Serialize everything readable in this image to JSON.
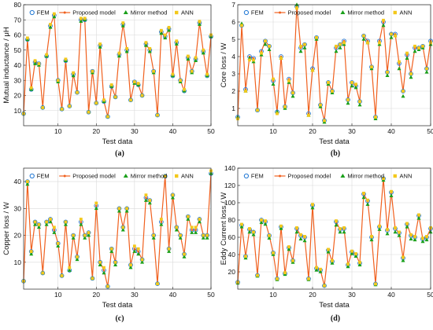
{
  "legend": [
    "FEM",
    "Proposed model",
    "Mirror method",
    "ANN"
  ],
  "colors": {
    "fem": "#1f77d4",
    "proposed": "#f0601e",
    "mirror": "#1aa01a",
    "ann": "#f3c81b"
  },
  "chart_data": [
    {
      "type": "line",
      "caption": "(a)",
      "xlabel": "Test data",
      "ylabel": "Mutual inductance / μH",
      "xlim": [
        1,
        50
      ],
      "ylim": [
        0,
        80
      ],
      "xticks": [
        10,
        20,
        30,
        40,
        50
      ],
      "yticks": [
        10,
        20,
        30,
        40,
        50,
        60,
        70,
        80
      ],
      "grid": true,
      "legend_position": "top",
      "x": [
        1,
        2,
        3,
        4,
        5,
        6,
        7,
        8,
        9,
        10,
        11,
        12,
        13,
        14,
        15,
        16,
        17,
        18,
        19,
        20,
        21,
        22,
        23,
        24,
        25,
        26,
        27,
        28,
        29,
        30,
        31,
        32,
        33,
        34,
        35,
        36,
        37,
        38,
        39,
        40,
        41,
        42,
        43,
        44,
        45,
        46,
        47,
        48,
        49,
        50
      ],
      "series": [
        {
          "name": "FEM",
          "values": [
            8,
            57,
            24,
            42,
            41,
            12,
            46,
            66,
            73,
            30,
            11,
            43,
            13,
            34,
            22,
            70,
            70,
            9,
            36,
            15,
            53,
            16,
            6,
            26,
            19,
            47,
            67,
            50,
            17,
            29,
            27,
            20,
            54,
            50,
            36,
            7,
            62,
            59,
            64,
            33,
            55,
            30,
            23,
            45,
            36,
            44,
            68,
            49,
            33,
            59
          ]
        },
        {
          "name": "Proposed model",
          "values": [
            8,
            57,
            24,
            42,
            41,
            12,
            46,
            66,
            73,
            30,
            11,
            43,
            13,
            34,
            22,
            70,
            70,
            9,
            36,
            15,
            53,
            16,
            6,
            26,
            19,
            47,
            67,
            50,
            17,
            29,
            27,
            20,
            54,
            50,
            36,
            7,
            62,
            59,
            64,
            33,
            55,
            30,
            23,
            45,
            36,
            44,
            68,
            49,
            33,
            59
          ]
        },
        {
          "name": "Mirror method",
          "values": [
            8,
            57,
            24,
            41,
            40,
            12,
            46,
            65,
            72,
            29,
            11,
            43,
            13,
            33,
            22,
            69,
            70,
            9,
            35,
            15,
            52,
            16,
            6,
            26,
            19,
            46,
            66,
            49,
            17,
            28,
            27,
            20,
            53,
            49,
            35,
            7,
            61,
            58,
            63,
            33,
            54,
            29,
            23,
            44,
            35,
            43,
            67,
            48,
            33,
            59
          ]
        },
        {
          "name": "ANN",
          "values": [
            8,
            58,
            25,
            43,
            41,
            12,
            47,
            67,
            74,
            30,
            11,
            44,
            13,
            35,
            22,
            71,
            71,
            9,
            36,
            15,
            54,
            17,
            6,
            27,
            19,
            48,
            68,
            51,
            17,
            29,
            28,
            20,
            55,
            51,
            36,
            7,
            63,
            60,
            65,
            34,
            56,
            30,
            24,
            46,
            36,
            45,
            69,
            50,
            34,
            60
          ]
        }
      ]
    },
    {
      "type": "line",
      "caption": "(b)",
      "xlabel": "Test data",
      "ylabel": "Core loss / W",
      "xlim": [
        1,
        50
      ],
      "ylim": [
        0,
        7
      ],
      "xticks": [
        10,
        20,
        30,
        40,
        50
      ],
      "yticks": [
        1,
        2,
        3,
        4,
        5,
        6,
        7
      ],
      "grid": true,
      "legend_position": "top",
      "x": [
        1,
        2,
        3,
        4,
        5,
        6,
        7,
        8,
        9,
        10,
        11,
        12,
        13,
        14,
        15,
        16,
        17,
        18,
        19,
        20,
        21,
        22,
        23,
        24,
        25,
        26,
        27,
        28,
        29,
        30,
        31,
        32,
        33,
        34,
        35,
        36,
        37,
        38,
        39,
        40,
        41,
        42,
        43,
        44,
        45,
        46,
        47,
        48,
        49,
        50
      ],
      "series": [
        {
          "name": "FEM",
          "values": [
            0.5,
            5.8,
            2.1,
            4.0,
            3.9,
            0.9,
            4.3,
            4.9,
            4.6,
            2.6,
            0.8,
            4.0,
            1.1,
            2.7,
            1.9,
            6.9,
            4.5,
            4.7,
            0.7,
            3.3,
            5.1,
            1.2,
            0.3,
            2.5,
            2.0,
            4.5,
            4.7,
            4.9,
            1.5,
            2.5,
            2.3,
            1.4,
            5.2,
            4.9,
            3.4,
            0.5,
            4.9,
            6.0,
            3.1,
            5.3,
            5.3,
            3.6,
            2.0,
            4.1,
            3.0,
            4.5,
            4.5,
            4.6,
            3.3,
            4.9
          ]
        },
        {
          "name": "Proposed model",
          "values": [
            0.5,
            5.8,
            2.1,
            4.0,
            3.9,
            0.9,
            4.3,
            4.9,
            4.6,
            2.6,
            0.8,
            4.0,
            1.1,
            2.7,
            1.9,
            6.9,
            4.5,
            4.7,
            0.7,
            3.3,
            5.1,
            1.2,
            0.3,
            2.5,
            2.0,
            4.5,
            4.7,
            4.9,
            1.5,
            2.5,
            2.3,
            1.4,
            5.2,
            4.9,
            3.4,
            0.5,
            4.9,
            6.0,
            3.1,
            5.3,
            5.3,
            3.6,
            2.0,
            4.1,
            3.0,
            4.5,
            4.5,
            4.6,
            3.3,
            4.9
          ]
        },
        {
          "name": "Mirror method",
          "values": [
            0.5,
            5.9,
            2.0,
            3.9,
            3.7,
            0.9,
            4.1,
            4.7,
            4.4,
            2.4,
            0.8,
            3.9,
            1.0,
            2.5,
            1.7,
            7.0,
            4.3,
            4.5,
            0.6,
            3.2,
            5.0,
            1.1,
            0.2,
            2.4,
            1.9,
            4.3,
            4.5,
            4.7,
            1.3,
            2.3,
            2.2,
            1.2,
            5.0,
            4.8,
            3.3,
            0.4,
            4.7,
            5.8,
            2.9,
            5.1,
            5.2,
            3.3,
            1.7,
            3.9,
            2.8,
            4.3,
            4.4,
            4.5,
            3.1,
            4.7
          ]
        },
        {
          "name": "ANN",
          "values": [
            0.4,
            5.8,
            2.0,
            3.8,
            3.8,
            0.9,
            4.2,
            4.9,
            4.6,
            2.7,
            0.7,
            3.9,
            1.1,
            2.6,
            1.9,
            6.8,
            4.6,
            4.7,
            0.6,
            3.2,
            5.1,
            1.2,
            0.3,
            2.5,
            2.0,
            4.6,
            4.7,
            4.8,
            1.5,
            2.5,
            2.4,
            1.4,
            5.2,
            4.8,
            3.4,
            0.5,
            4.8,
            6.1,
            3.1,
            5.3,
            5.2,
            3.7,
            2.0,
            4.2,
            3.0,
            4.6,
            4.5,
            4.6,
            3.3,
            4.8
          ]
        }
      ]
    },
    {
      "type": "line",
      "caption": "(c)",
      "xlabel": "Test data",
      "ylabel": "Copper loss / W",
      "xlim": [
        1,
        50
      ],
      "ylim": [
        0,
        45
      ],
      "xticks": [
        10,
        20,
        30,
        40,
        50
      ],
      "yticks": [
        10,
        20,
        30,
        40
      ],
      "grid": true,
      "legend_position": "top",
      "x": [
        1,
        2,
        3,
        4,
        5,
        6,
        7,
        8,
        9,
        10,
        11,
        12,
        13,
        14,
        15,
        16,
        17,
        18,
        19,
        20,
        21,
        22,
        23,
        24,
        25,
        26,
        27,
        28,
        29,
        30,
        31,
        32,
        33,
        34,
        35,
        36,
        37,
        38,
        39,
        40,
        41,
        42,
        43,
        44,
        45,
        46,
        47,
        48,
        49,
        50
      ],
      "series": [
        {
          "name": "FEM",
          "values": [
            3,
            40,
            14,
            25,
            24,
            6,
            25,
            26,
            22,
            17,
            5,
            25,
            7,
            20,
            12,
            25,
            20,
            21,
            4,
            31,
            10,
            7,
            1,
            15,
            10,
            30,
            23,
            30,
            9,
            15,
            14,
            11,
            34,
            33,
            20,
            2,
            25,
            42,
            15,
            35,
            23,
            20,
            13,
            27,
            22,
            22,
            26,
            20,
            20,
            43
          ]
        },
        {
          "name": "Proposed model",
          "values": [
            3,
            40,
            14,
            25,
            24,
            6,
            25,
            26,
            22,
            17,
            5,
            25,
            7,
            20,
            12,
            25,
            20,
            21,
            4,
            31,
            10,
            7,
            1,
            15,
            10,
            30,
            23,
            30,
            9,
            15,
            14,
            11,
            34,
            33,
            20,
            2,
            25,
            42,
            15,
            35,
            23,
            20,
            13,
            27,
            22,
            22,
            26,
            20,
            20,
            43
          ]
        },
        {
          "name": "Mirror method",
          "values": [
            3,
            39,
            13,
            24,
            23,
            6,
            24,
            25,
            21,
            16,
            5,
            24,
            7,
            19,
            11,
            24,
            19,
            20,
            4,
            30,
            9,
            6,
            1,
            14,
            9,
            29,
            22,
            29,
            8,
            14,
            13,
            10,
            33,
            32,
            19,
            2,
            24,
            42,
            14,
            34,
            22,
            19,
            12,
            26,
            21,
            21,
            25,
            19,
            19,
            43
          ]
        },
        {
          "name": "ANN",
          "values": [
            3,
            40,
            14,
            25,
            24,
            6,
            25,
            26,
            23,
            17,
            5,
            25,
            8,
            20,
            12,
            26,
            20,
            21,
            4,
            32,
            10,
            8,
            1,
            15,
            10,
            30,
            23,
            30,
            9,
            16,
            15,
            11,
            35,
            33,
            20,
            2,
            26,
            42,
            15,
            35,
            23,
            20,
            13,
            27,
            23,
            23,
            26,
            20,
            20,
            44
          ]
        }
      ]
    },
    {
      "type": "line",
      "caption": "(d)",
      "xlabel": "Test data",
      "ylabel": "Eddy Current loss / W",
      "xlim": [
        1,
        50
      ],
      "ylim": [
        0,
        140
      ],
      "xticks": [
        10,
        20,
        30,
        40,
        50
      ],
      "yticks": [
        20,
        40,
        60,
        80,
        100,
        120,
        140
      ],
      "grid": true,
      "legend_position": "top",
      "x": [
        1,
        2,
        3,
        4,
        5,
        6,
        7,
        8,
        9,
        10,
        11,
        12,
        13,
        14,
        15,
        16,
        17,
        18,
        19,
        20,
        21,
        22,
        23,
        24,
        25,
        26,
        27,
        28,
        29,
        30,
        31,
        32,
        33,
        34,
        35,
        36,
        37,
        38,
        39,
        40,
        41,
        42,
        43,
        44,
        45,
        46,
        47,
        48,
        49,
        50
      ],
      "series": [
        {
          "name": "FEM",
          "values": [
            8,
            74,
            38,
            69,
            66,
            16,
            80,
            78,
            62,
            42,
            12,
            72,
            18,
            48,
            33,
            70,
            62,
            60,
            12,
            97,
            24,
            22,
            4,
            45,
            32,
            78,
            69,
            70,
            28,
            43,
            40,
            30,
            110,
            102,
            60,
            6,
            72,
            128,
            68,
            112,
            70,
            65,
            36,
            75,
            62,
            60,
            85,
            58,
            60,
            70
          ]
        },
        {
          "name": "Proposed model",
          "values": [
            8,
            74,
            38,
            69,
            66,
            16,
            80,
            78,
            62,
            42,
            12,
            72,
            18,
            48,
            33,
            70,
            62,
            60,
            12,
            97,
            24,
            22,
            4,
            45,
            32,
            78,
            69,
            70,
            28,
            43,
            40,
            30,
            110,
            102,
            60,
            6,
            72,
            128,
            68,
            112,
            70,
            65,
            36,
            75,
            62,
            60,
            85,
            58,
            60,
            70
          ]
        },
        {
          "name": "Mirror method",
          "values": [
            7,
            72,
            36,
            66,
            63,
            15,
            77,
            75,
            59,
            40,
            11,
            70,
            17,
            46,
            31,
            66,
            58,
            56,
            11,
            94,
            22,
            20,
            4,
            43,
            30,
            74,
            66,
            66,
            26,
            41,
            38,
            28,
            106,
            98,
            57,
            5,
            69,
            126,
            64,
            108,
            66,
            62,
            33,
            72,
            58,
            57,
            82,
            55,
            57,
            66
          ]
        },
        {
          "name": "ANN",
          "values": [
            8,
            75,
            38,
            70,
            66,
            16,
            80,
            79,
            62,
            42,
            12,
            73,
            19,
            49,
            33,
            71,
            63,
            61,
            12,
            98,
            25,
            23,
            4,
            46,
            33,
            79,
            70,
            71,
            29,
            44,
            41,
            31,
            111,
            103,
            61,
            6,
            73,
            128,
            69,
            113,
            71,
            66,
            37,
            76,
            63,
            61,
            86,
            59,
            61,
            71
          ]
        }
      ]
    }
  ]
}
